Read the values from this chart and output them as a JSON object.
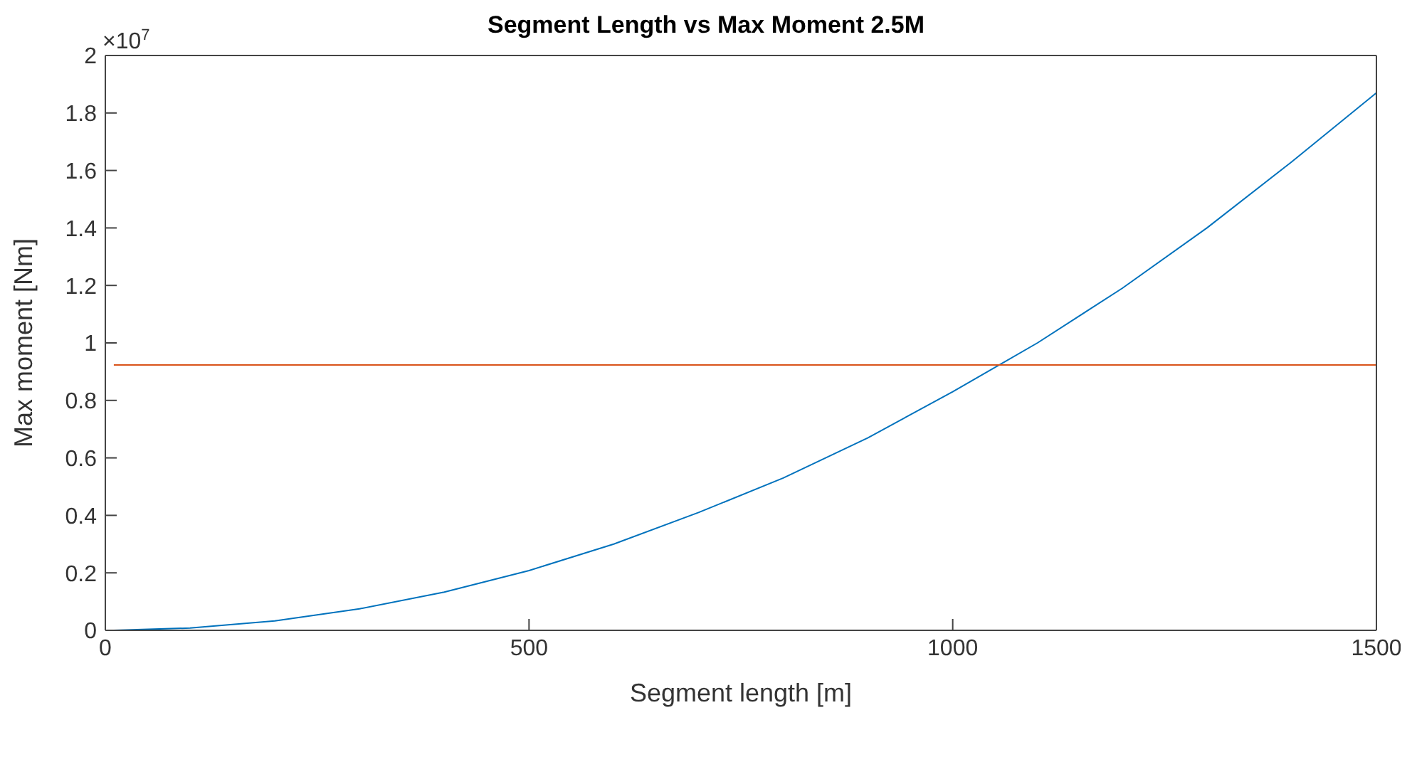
{
  "chart_data": {
    "type": "line",
    "title": "Segment Length vs Max Moment 2.5M",
    "xlabel": "Segment length [m]",
    "ylabel": "Max moment [Nm]",
    "annotations": [
      "×10$^{7}$"
    ],
    "xlim": [
      0,
      1500
    ],
    "xticks": [
      0,
      500,
      1000,
      1500
    ],
    "ylim": [
      0,
      2
    ],
    "yticks": [
      0,
      0.2,
      0.4,
      0.6,
      0.8,
      1,
      1.2,
      1.4,
      1.6,
      1.8,
      2
    ],
    "legend": false,
    "marker": "none",
    "line_style": "solid",
    "series": [
      {
        "color": "#0072bd",
        "x": [
          10,
          100,
          200,
          300,
          400,
          500,
          600,
          700,
          800,
          900,
          1000,
          1100,
          1200,
          1300,
          1400,
          1500
        ],
        "values": [
          0,
          0.008,
          0.033,
          0.075,
          0.133,
          0.208,
          0.3,
          0.41,
          0.53,
          0.67,
          0.83,
          1.0,
          1.19,
          1.4,
          1.63,
          1.87
        ]
      },
      {
        "color": "#d95319",
        "x": [
          10,
          1500
        ],
        "values": [
          0.923,
          0.923
        ]
      }
    ]
  }
}
